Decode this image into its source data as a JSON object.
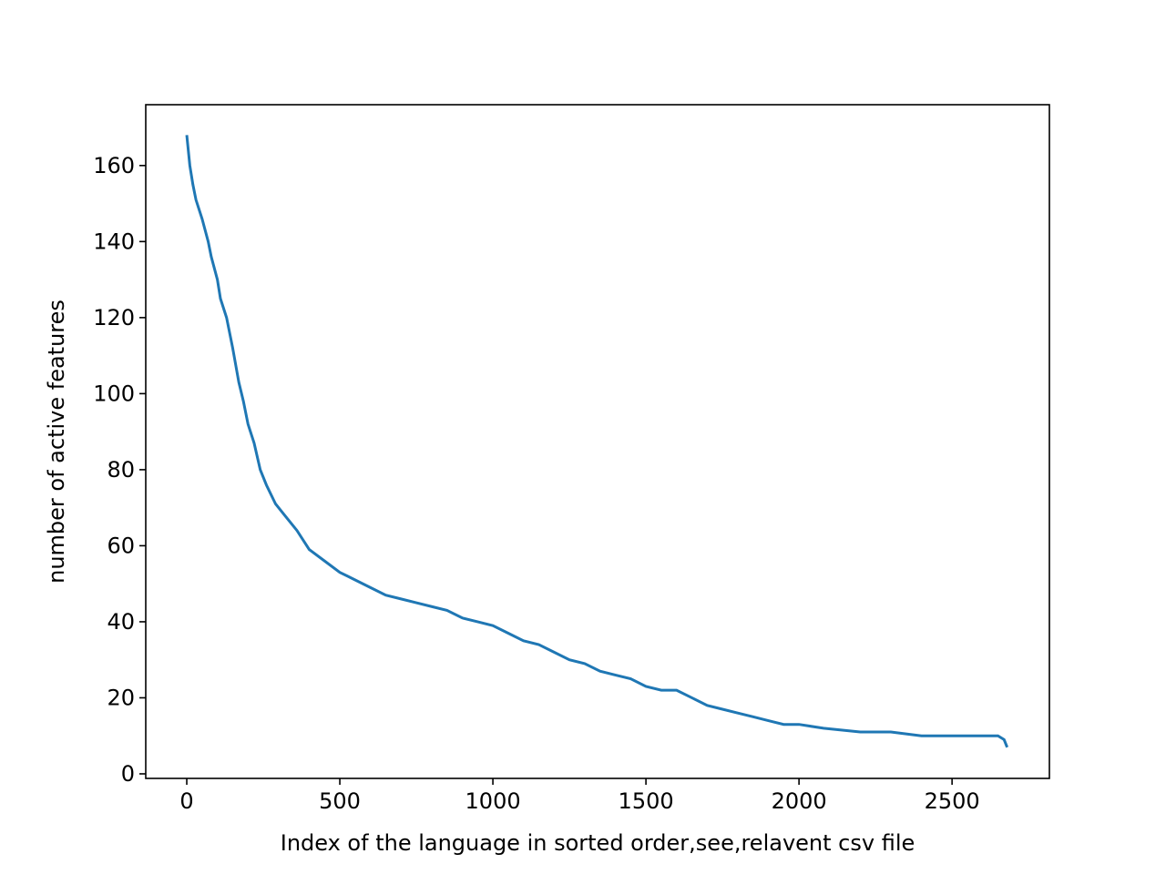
{
  "chart_data": {
    "type": "line",
    "xlabel": "Index of the language in sorted order,see,relavent csv file",
    "ylabel": "number of active features",
    "x": [
      0,
      5,
      10,
      20,
      30,
      50,
      70,
      80,
      100,
      110,
      130,
      150,
      170,
      185,
      200,
      220,
      240,
      260,
      290,
      320,
      360,
      400,
      450,
      500,
      550,
      600,
      650,
      700,
      750,
      800,
      850,
      900,
      950,
      1000,
      1050,
      1100,
      1150,
      1200,
      1250,
      1300,
      1350,
      1400,
      1450,
      1500,
      1550,
      1600,
      1650,
      1700,
      1750,
      1800,
      1850,
      1900,
      1950,
      2000,
      2080,
      2200,
      2300,
      2400,
      2500,
      2600,
      2650,
      2670,
      2680
    ],
    "series": [
      {
        "name": "active features",
        "color": "#1f77b4",
        "values": [
          168,
          164,
          160,
          155,
          151,
          146,
          140,
          136,
          130,
          125,
          120,
          112,
          103,
          98,
          92,
          87,
          80,
          76,
          71,
          68,
          64,
          59,
          56,
          53,
          51,
          49,
          47,
          46,
          45,
          44,
          43,
          41,
          40,
          39,
          37,
          35,
          34,
          32,
          30,
          29,
          27,
          26,
          25,
          23,
          22,
          22,
          20,
          18,
          17,
          16,
          15,
          14,
          13,
          13,
          12,
          11,
          11,
          10,
          10,
          10,
          10,
          9,
          7
        ]
      }
    ],
    "xlim": [
      -134,
      2818
    ],
    "ylim": [
      -1.2,
      176
    ],
    "xticks": [
      0,
      500,
      1000,
      1500,
      2000,
      2500
    ],
    "yticks": [
      0,
      20,
      40,
      60,
      80,
      100,
      120,
      140,
      160
    ]
  }
}
